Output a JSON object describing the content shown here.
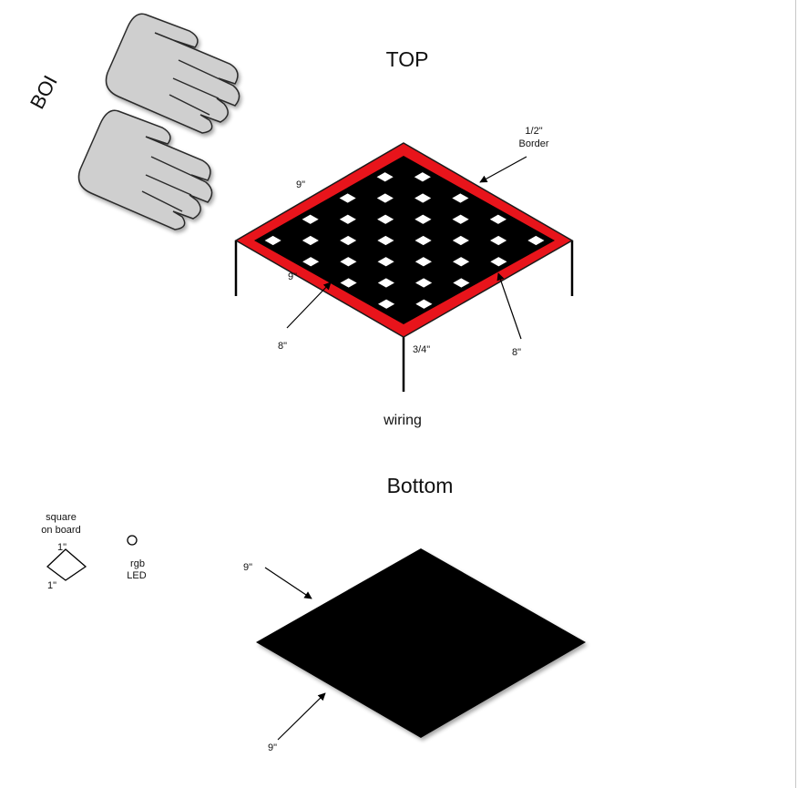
{
  "top": {
    "title": "TOP",
    "border_label_line1": "1/2\"",
    "border_label_line2": "Border",
    "dim_top_left": "9\"",
    "dim_left_inner": "9\"",
    "dim_8_left": "8\"",
    "dim_8_right": "8\"",
    "dim_leg": "3/4\"",
    "wiring": "wiring",
    "board_colors": {
      "border": "#e8141b",
      "board": "#000000",
      "square": "#ffffff"
    }
  },
  "side_label": "BOI",
  "bottom": {
    "title": "Bottom",
    "dim_upper": "9\"",
    "dim_lower": "9\""
  },
  "legend": {
    "square_line1": "square",
    "square_line2": "on board",
    "square_dim_top": "1\"",
    "square_dim_bottom": "1\"",
    "led_line1": "rgb",
    "led_line2": "LED"
  },
  "hands": {
    "fill": "#cfcfcf",
    "stroke": "#2a2a2a"
  }
}
